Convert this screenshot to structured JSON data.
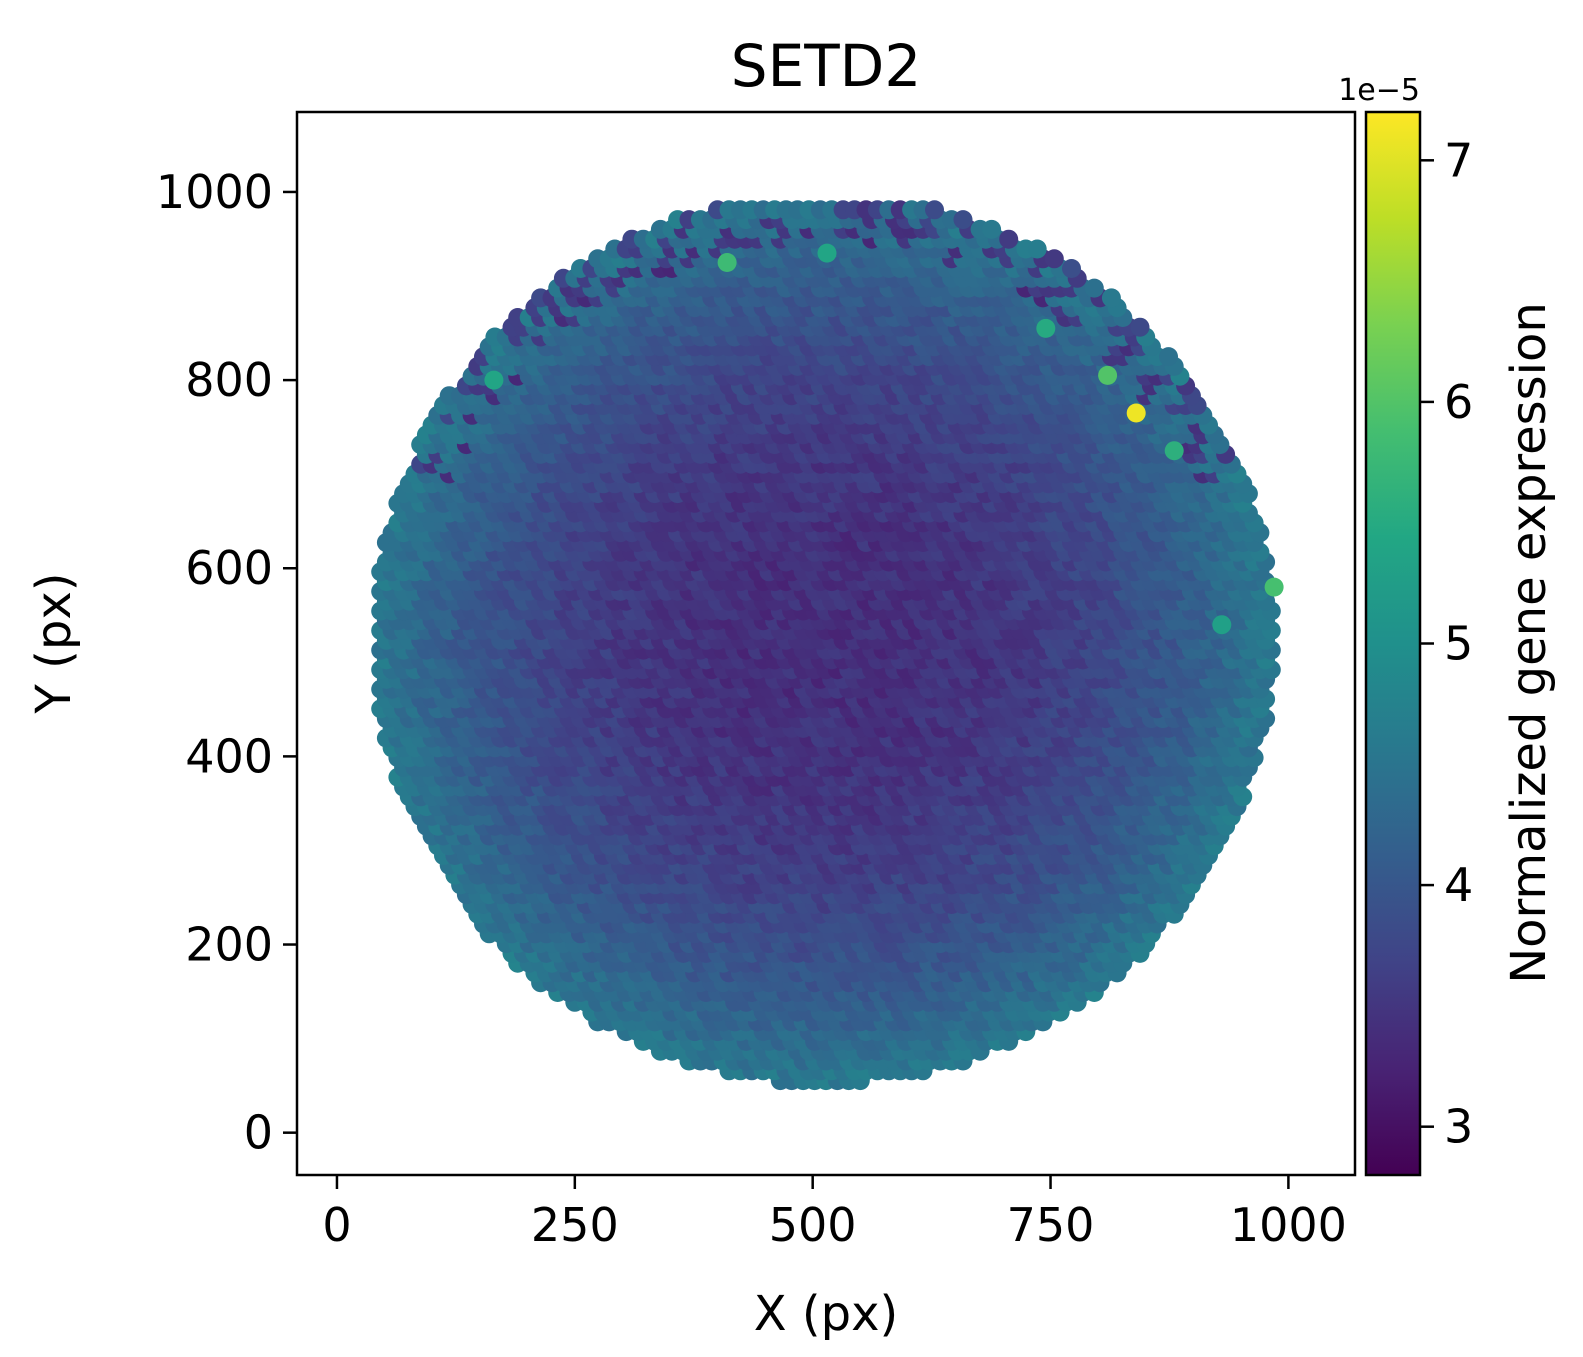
{
  "chart_data": {
    "type": "scatter",
    "title": "SETD2",
    "xlabel": "X (px)",
    "ylabel": "Y (px)",
    "xlim": [
      -42,
      1070
    ],
    "ylim": [
      -45,
      1085
    ],
    "xticks": [
      0,
      250,
      500,
      750,
      1000
    ],
    "yticks": [
      0,
      200,
      400,
      600,
      800,
      1000
    ],
    "grid": false,
    "legend": "none",
    "region": {
      "shape": "disc",
      "center": [
        512,
        525
      ],
      "radius": 472,
      "x_extent": [
        40,
        990
      ],
      "y_extent": [
        45,
        990
      ],
      "edge_value": 4.6e-05,
      "core_value": 3.4e-05,
      "notes": "dense hexagonal grid of spots; low expression in interior, higher toward rim"
    },
    "highlights": [
      {
        "x": 840,
        "y": 765,
        "value": 7.1e-05
      },
      {
        "x": 810,
        "y": 805,
        "value": 6e-05
      },
      {
        "x": 985,
        "y": 580,
        "value": 5.9e-05
      },
      {
        "x": 410,
        "y": 925,
        "value": 5.8e-05
      },
      {
        "x": 880,
        "y": 725,
        "value": 5.6e-05
      },
      {
        "x": 745,
        "y": 855,
        "value": 5.5e-05
      },
      {
        "x": 165,
        "y": 800,
        "value": 5.4e-05
      },
      {
        "x": 515,
        "y": 935,
        "value": 5.4e-05
      },
      {
        "x": 930,
        "y": 540,
        "value": 5.3e-05
      }
    ],
    "colorbar": {
      "label": "Normalized gene expression",
      "colormap": "viridis",
      "range": [
        2.8e-05,
        7.2e-05
      ],
      "ticks": [
        3,
        4,
        5,
        6,
        7
      ],
      "exponent_label": "1e−5"
    }
  }
}
